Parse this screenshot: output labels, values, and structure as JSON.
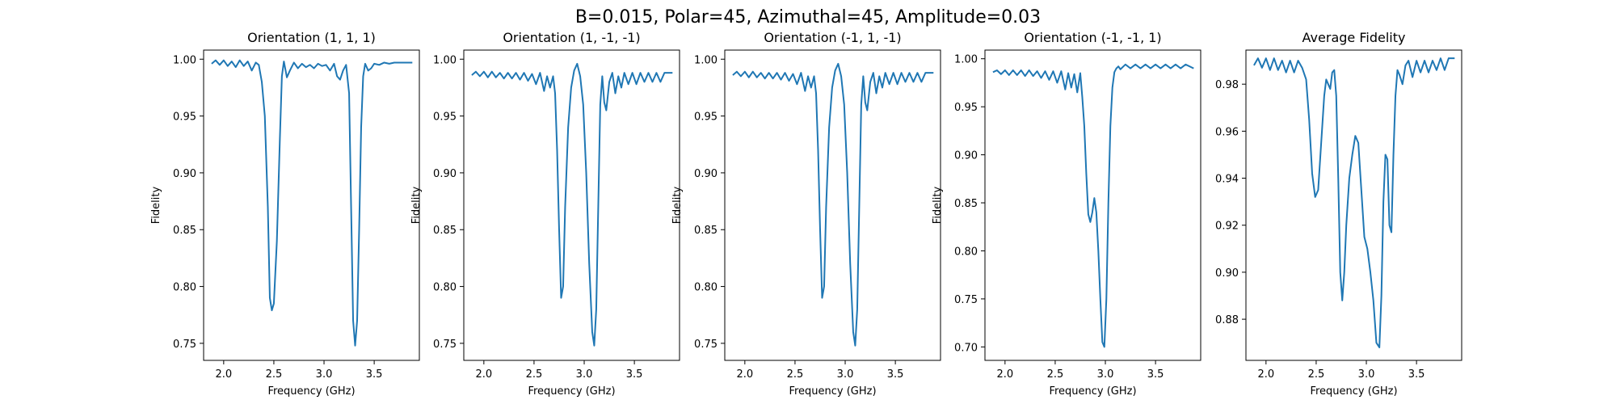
{
  "figure": {
    "suptitle": "B=0.015, Polar=45, Azimuthal=45, Amplitude=0.03"
  },
  "chart_data": [
    {
      "type": "line",
      "title": "Orientation (1, 1, 1)",
      "xlabel": "Frequency (GHz)",
      "ylabel": "Fidelity",
      "xlim": [
        1.8,
        3.95
      ],
      "ylim": [
        0.735,
        1.008
      ],
      "xticks": [
        2.0,
        2.5,
        3.0,
        3.5
      ],
      "yticks": [
        0.75,
        0.8,
        0.85,
        0.9,
        0.95,
        1.0
      ],
      "series": [
        {
          "color": "#1f77b4",
          "x": [
            1.88,
            1.92,
            1.96,
            2.0,
            2.04,
            2.08,
            2.12,
            2.16,
            2.2,
            2.24,
            2.28,
            2.32,
            2.35,
            2.38,
            2.41,
            2.44,
            2.46,
            2.48,
            2.5,
            2.53,
            2.56,
            2.58,
            2.6,
            2.63,
            2.66,
            2.7,
            2.74,
            2.78,
            2.82,
            2.86,
            2.9,
            2.94,
            2.98,
            3.02,
            3.06,
            3.1,
            3.13,
            3.16,
            3.19,
            3.22,
            3.25,
            3.27,
            3.29,
            3.31,
            3.33,
            3.35,
            3.37,
            3.39,
            3.41,
            3.44,
            3.47,
            3.5,
            3.55,
            3.6,
            3.65,
            3.7,
            3.75,
            3.8,
            3.88
          ],
          "y": [
            0.996,
            0.999,
            0.995,
            0.999,
            0.994,
            0.998,
            0.993,
            0.999,
            0.994,
            0.998,
            0.99,
            0.997,
            0.995,
            0.98,
            0.95,
            0.87,
            0.79,
            0.779,
            0.785,
            0.84,
            0.93,
            0.985,
            0.998,
            0.984,
            0.99,
            0.997,
            0.992,
            0.996,
            0.993,
            0.995,
            0.992,
            0.996,
            0.994,
            0.995,
            0.99,
            0.996,
            0.985,
            0.982,
            0.99,
            0.995,
            0.97,
            0.87,
            0.77,
            0.748,
            0.77,
            0.85,
            0.94,
            0.985,
            0.996,
            0.99,
            0.992,
            0.996,
            0.995,
            0.997,
            0.996,
            0.997,
            0.997,
            0.997,
            0.997
          ]
        }
      ]
    },
    {
      "type": "line",
      "title": "Orientation (1, -1, -1)",
      "xlabel": "Frequency (GHz)",
      "ylabel": "Fidelity",
      "xlim": [
        1.8,
        3.95
      ],
      "ylim": [
        0.735,
        1.008
      ],
      "xticks": [
        2.0,
        2.5,
        3.0,
        3.5
      ],
      "yticks": [
        0.75,
        0.8,
        0.85,
        0.9,
        0.95,
        1.0
      ],
      "series": [
        {
          "color": "#1f77b4",
          "x": [
            1.88,
            1.92,
            1.96,
            2.0,
            2.04,
            2.08,
            2.12,
            2.16,
            2.2,
            2.24,
            2.28,
            2.32,
            2.36,
            2.4,
            2.44,
            2.48,
            2.52,
            2.56,
            2.6,
            2.63,
            2.66,
            2.69,
            2.71,
            2.73,
            2.75,
            2.77,
            2.79,
            2.81,
            2.84,
            2.87,
            2.9,
            2.93,
            2.96,
            2.99,
            3.02,
            3.05,
            3.08,
            3.1,
            3.12,
            3.14,
            3.16,
            3.18,
            3.2,
            3.22,
            3.25,
            3.28,
            3.31,
            3.34,
            3.37,
            3.4,
            3.44,
            3.48,
            3.52,
            3.56,
            3.6,
            3.64,
            3.68,
            3.72,
            3.76,
            3.8,
            3.88
          ],
          "y": [
            0.986,
            0.989,
            0.985,
            0.989,
            0.984,
            0.989,
            0.984,
            0.988,
            0.983,
            0.988,
            0.983,
            0.988,
            0.982,
            0.988,
            0.981,
            0.987,
            0.978,
            0.988,
            0.972,
            0.985,
            0.975,
            0.985,
            0.97,
            0.92,
            0.85,
            0.79,
            0.8,
            0.87,
            0.94,
            0.975,
            0.99,
            0.996,
            0.985,
            0.96,
            0.9,
            0.82,
            0.76,
            0.748,
            0.78,
            0.87,
            0.96,
            0.985,
            0.962,
            0.955,
            0.98,
            0.988,
            0.97,
            0.985,
            0.975,
            0.988,
            0.978,
            0.988,
            0.978,
            0.988,
            0.98,
            0.988,
            0.98,
            0.988,
            0.98,
            0.988,
            0.988
          ]
        }
      ]
    },
    {
      "type": "line",
      "title": "Orientation (-1, 1, -1)",
      "xlabel": "Frequency (GHz)",
      "ylabel": "Fidelity",
      "xlim": [
        1.8,
        3.95
      ],
      "ylim": [
        0.735,
        1.008
      ],
      "xticks": [
        2.0,
        2.5,
        3.0,
        3.5
      ],
      "yticks": [
        0.75,
        0.8,
        0.85,
        0.9,
        0.95,
        1.0
      ],
      "series": [
        {
          "color": "#1f77b4",
          "x": [
            1.88,
            1.92,
            1.96,
            2.0,
            2.04,
            2.08,
            2.12,
            2.16,
            2.2,
            2.24,
            2.28,
            2.32,
            2.36,
            2.4,
            2.44,
            2.48,
            2.52,
            2.56,
            2.6,
            2.63,
            2.66,
            2.69,
            2.71,
            2.73,
            2.75,
            2.77,
            2.79,
            2.81,
            2.84,
            2.87,
            2.9,
            2.93,
            2.96,
            2.99,
            3.02,
            3.05,
            3.08,
            3.1,
            3.12,
            3.14,
            3.16,
            3.18,
            3.2,
            3.22,
            3.25,
            3.28,
            3.31,
            3.34,
            3.37,
            3.4,
            3.44,
            3.48,
            3.52,
            3.56,
            3.6,
            3.64,
            3.68,
            3.72,
            3.76,
            3.8,
            3.88
          ],
          "y": [
            0.986,
            0.989,
            0.985,
            0.989,
            0.984,
            0.989,
            0.984,
            0.988,
            0.983,
            0.988,
            0.983,
            0.988,
            0.982,
            0.988,
            0.981,
            0.987,
            0.978,
            0.988,
            0.972,
            0.985,
            0.975,
            0.985,
            0.97,
            0.92,
            0.85,
            0.79,
            0.8,
            0.87,
            0.94,
            0.975,
            0.99,
            0.996,
            0.985,
            0.96,
            0.9,
            0.82,
            0.76,
            0.748,
            0.78,
            0.87,
            0.96,
            0.985,
            0.962,
            0.955,
            0.98,
            0.988,
            0.97,
            0.985,
            0.975,
            0.988,
            0.978,
            0.988,
            0.978,
            0.988,
            0.98,
            0.988,
            0.98,
            0.988,
            0.98,
            0.988,
            0.988
          ]
        }
      ]
    },
    {
      "type": "line",
      "title": "Orientation (-1, -1, 1)",
      "xlabel": "Frequency (GHz)",
      "ylabel": "Fidelity",
      "xlim": [
        1.8,
        3.95
      ],
      "ylim": [
        0.686,
        1.009
      ],
      "xticks": [
        2.0,
        2.5,
        3.0,
        3.5
      ],
      "yticks": [
        0.7,
        0.75,
        0.8,
        0.85,
        0.9,
        0.95,
        1.0
      ],
      "series": [
        {
          "color": "#1f77b4",
          "x": [
            1.88,
            1.92,
            1.96,
            2.0,
            2.04,
            2.08,
            2.12,
            2.16,
            2.2,
            2.24,
            2.28,
            2.32,
            2.36,
            2.4,
            2.44,
            2.48,
            2.52,
            2.56,
            2.6,
            2.63,
            2.66,
            2.69,
            2.72,
            2.75,
            2.77,
            2.79,
            2.81,
            2.83,
            2.85,
            2.87,
            2.89,
            2.91,
            2.93,
            2.95,
            2.97,
            2.99,
            3.01,
            3.03,
            3.05,
            3.07,
            3.09,
            3.11,
            3.13,
            3.15,
            3.2,
            3.25,
            3.3,
            3.35,
            3.4,
            3.45,
            3.5,
            3.55,
            3.6,
            3.65,
            3.7,
            3.75,
            3.8,
            3.88
          ],
          "y": [
            0.986,
            0.988,
            0.984,
            0.988,
            0.983,
            0.988,
            0.983,
            0.988,
            0.982,
            0.988,
            0.982,
            0.987,
            0.98,
            0.987,
            0.978,
            0.987,
            0.975,
            0.987,
            0.968,
            0.985,
            0.97,
            0.984,
            0.965,
            0.985,
            0.96,
            0.93,
            0.88,
            0.838,
            0.83,
            0.84,
            0.855,
            0.84,
            0.8,
            0.75,
            0.705,
            0.7,
            0.75,
            0.85,
            0.93,
            0.97,
            0.986,
            0.99,
            0.992,
            0.989,
            0.994,
            0.99,
            0.994,
            0.99,
            0.994,
            0.99,
            0.994,
            0.99,
            0.994,
            0.99,
            0.994,
            0.99,
            0.994,
            0.99
          ]
        }
      ]
    },
    {
      "type": "line",
      "title": "Average Fidelity",
      "xlabel": "Frequency (GHz)",
      "ylabel": "",
      "xlim": [
        1.8,
        3.95
      ],
      "ylim": [
        0.8625,
        0.9945
      ],
      "xticks": [
        2.0,
        2.5,
        3.0,
        3.5
      ],
      "yticks": [
        0.88,
        0.9,
        0.92,
        0.94,
        0.96,
        0.98
      ],
      "series": [
        {
          "color": "#1f77b4",
          "x": [
            1.88,
            1.92,
            1.96,
            2.0,
            2.04,
            2.08,
            2.12,
            2.16,
            2.2,
            2.24,
            2.28,
            2.32,
            2.36,
            2.4,
            2.43,
            2.46,
            2.49,
            2.52,
            2.55,
            2.58,
            2.6,
            2.62,
            2.64,
            2.66,
            2.68,
            2.7,
            2.72,
            2.74,
            2.76,
            2.78,
            2.8,
            2.83,
            2.86,
            2.89,
            2.92,
            2.95,
            2.98,
            3.01,
            3.04,
            3.07,
            3.1,
            3.13,
            3.15,
            3.17,
            3.19,
            3.21,
            3.23,
            3.25,
            3.27,
            3.29,
            3.31,
            3.33,
            3.36,
            3.39,
            3.42,
            3.46,
            3.5,
            3.54,
            3.58,
            3.62,
            3.66,
            3.7,
            3.74,
            3.78,
            3.82,
            3.88
          ],
          "y": [
            0.988,
            0.991,
            0.987,
            0.991,
            0.986,
            0.991,
            0.986,
            0.99,
            0.985,
            0.99,
            0.985,
            0.99,
            0.987,
            0.982,
            0.965,
            0.942,
            0.932,
            0.935,
            0.955,
            0.975,
            0.982,
            0.98,
            0.978,
            0.985,
            0.986,
            0.975,
            0.94,
            0.9,
            0.888,
            0.9,
            0.92,
            0.94,
            0.95,
            0.958,
            0.955,
            0.935,
            0.915,
            0.91,
            0.9,
            0.888,
            0.87,
            0.868,
            0.89,
            0.93,
            0.95,
            0.948,
            0.92,
            0.917,
            0.95,
            0.975,
            0.986,
            0.984,
            0.98,
            0.988,
            0.99,
            0.983,
            0.99,
            0.985,
            0.99,
            0.985,
            0.99,
            0.986,
            0.991,
            0.986,
            0.991,
            0.991
          ]
        }
      ]
    }
  ]
}
